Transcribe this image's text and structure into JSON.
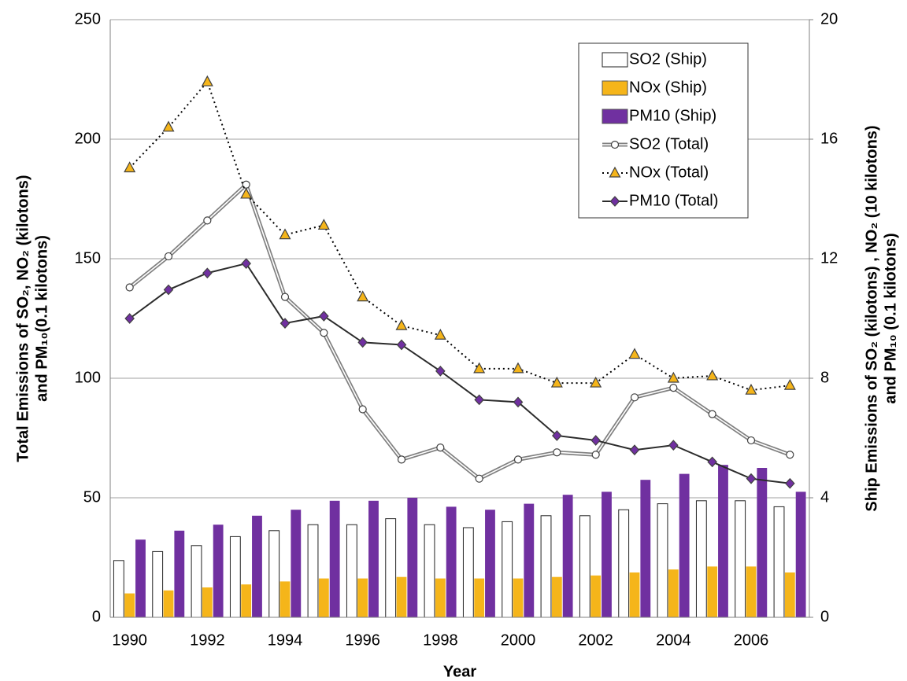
{
  "chart_data": {
    "type": "bar_line",
    "x_label": "Year",
    "y_label": [
      "Total Emissions of SO₂, NO₂ (kilotons)",
      "and PM₁₀(0.1 kilotons)"
    ],
    "y2_label": [
      "Ship Emissions of SO₂ (kilotons) , NO₂ (10 kilotons)",
      "and PM₁₀ (0.1 kilotons)"
    ],
    "categories": [
      "1990",
      null,
      "1992",
      null,
      "1994",
      null,
      "1996",
      null,
      "1998",
      null,
      "2000",
      null,
      "2002",
      null,
      "2004",
      null,
      "2006",
      null
    ],
    "ylim": [
      0,
      250
    ],
    "yticks": [
      0,
      50,
      100,
      150,
      200,
      250
    ],
    "y2lim": [
      0,
      20
    ],
    "y2ticks": [
      0,
      4,
      8,
      12,
      16,
      20
    ],
    "grid": true,
    "legend": "top-right",
    "series": [
      {
        "name": "SO2 (Ship)",
        "type": "bar",
        "axis": "y2",
        "color": "#ffffff",
        "values": [
          1.9,
          2.2,
          2.4,
          2.7,
          2.9,
          3.1,
          3.1,
          3.3,
          3.1,
          3.0,
          3.2,
          3.4,
          3.4,
          3.6,
          3.8,
          3.9,
          3.9,
          3.7
        ]
      },
      {
        "name": "NOx (Ship)",
        "type": "bar",
        "axis": "y2",
        "color": "#f5b51a",
        "values": [
          0.8,
          0.9,
          1.0,
          1.1,
          1.2,
          1.3,
          1.3,
          1.35,
          1.3,
          1.3,
          1.3,
          1.35,
          1.4,
          1.5,
          1.6,
          1.7,
          1.7,
          1.5
        ]
      },
      {
        "name": "PM10 (Ship)",
        "type": "bar",
        "axis": "y2",
        "color": "#7030a0",
        "values": [
          2.6,
          2.9,
          3.1,
          3.4,
          3.6,
          3.9,
          3.9,
          4.0,
          3.7,
          3.6,
          3.8,
          4.1,
          4.2,
          4.6,
          4.8,
          5.1,
          5.0,
          4.2
        ]
      },
      {
        "name": "SO2 (Total)",
        "type": "line",
        "marker": "circle",
        "line": "double",
        "color": "#808080",
        "values": [
          138,
          151,
          166,
          181,
          134,
          119,
          87,
          66,
          71,
          58,
          66,
          69,
          68,
          92,
          96,
          85,
          74,
          68
        ]
      },
      {
        "name": "NOx (Total)",
        "type": "line",
        "marker": "triangle",
        "line": "dotted",
        "color": "#f5b51a",
        "values": [
          188,
          205,
          224,
          177,
          160,
          164,
          134,
          122,
          118,
          104,
          104,
          98,
          98,
          110,
          100,
          101,
          95,
          97
        ]
      },
      {
        "name": "PM10 (Total)",
        "type": "line",
        "marker": "diamond",
        "line": "solid",
        "color": "#7030a0",
        "values": [
          125,
          137,
          144,
          148,
          123,
          126,
          115,
          114,
          103,
          91,
          90,
          76,
          74,
          70,
          72,
          65,
          58,
          56
        ]
      }
    ]
  }
}
